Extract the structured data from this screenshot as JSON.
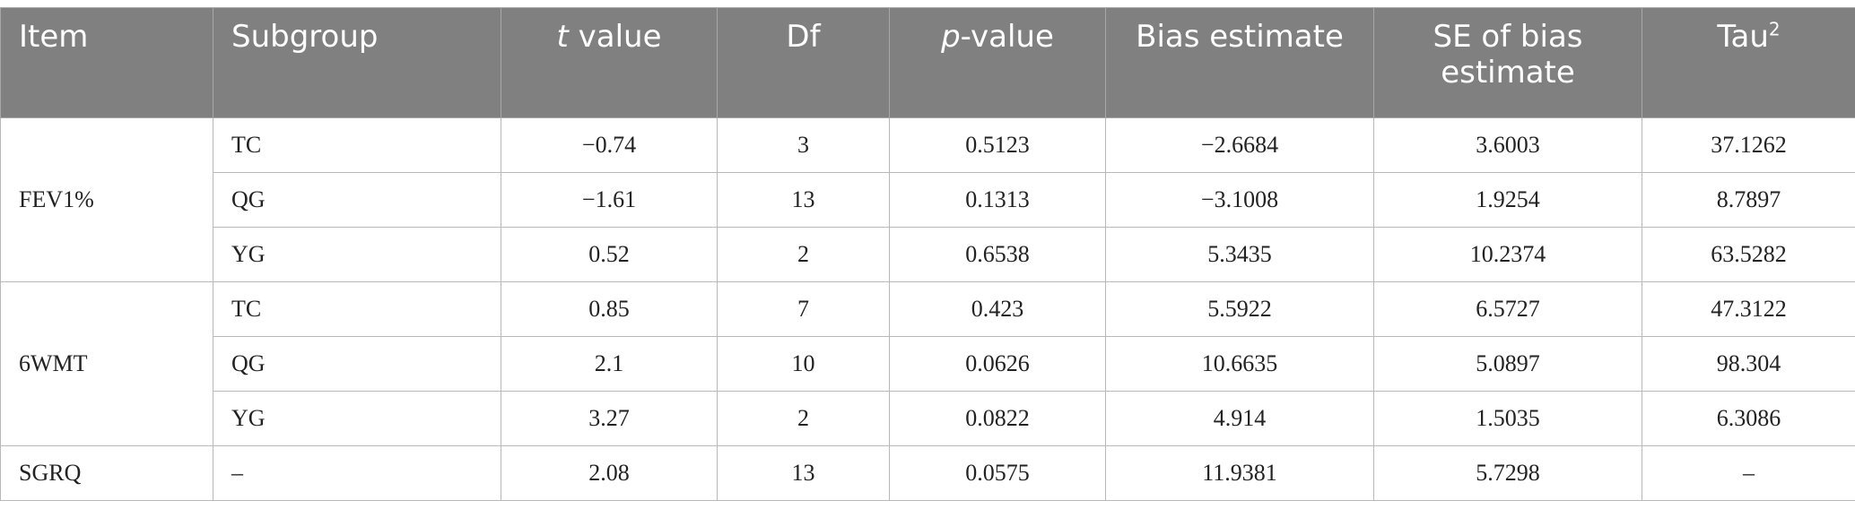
{
  "headers": {
    "item": "Item",
    "subgroup": "Subgroup",
    "t_value_italic": "t",
    "t_value_rest": " value",
    "df": "Df",
    "p_value_italic": "p",
    "p_value_rest": "-value",
    "bias_estimate": "Bias estimate",
    "se_bias_estimate": "SE of bias estimate",
    "tau_base": "Tau",
    "tau_sup": "2"
  },
  "groups": [
    {
      "item": "FEV1%",
      "rows": [
        {
          "subgroup": "TC",
          "t": "−0.74",
          "df": "3",
          "p": "0.5123",
          "bias": "−2.6684",
          "se": "3.6003",
          "tau2": "37.1262"
        },
        {
          "subgroup": "QG",
          "t": "−1.61",
          "df": "13",
          "p": "0.1313",
          "bias": "−3.1008",
          "se": "1.9254",
          "tau2": "8.7897"
        },
        {
          "subgroup": "YG",
          "t": "0.52",
          "df": "2",
          "p": "0.6538",
          "bias": "5.3435",
          "se": "10.2374",
          "tau2": "63.5282"
        }
      ]
    },
    {
      "item": "6WMT",
      "rows": [
        {
          "subgroup": "TC",
          "t": "0.85",
          "df": "7",
          "p": "0.423",
          "bias": "5.5922",
          "se": "6.5727",
          "tau2": "47.3122"
        },
        {
          "subgroup": "QG",
          "t": "2.1",
          "df": "10",
          "p": "0.0626",
          "bias": "10.6635",
          "se": "5.0897",
          "tau2": "98.304"
        },
        {
          "subgroup": "YG",
          "t": "3.27",
          "df": "2",
          "p": "0.0822",
          "bias": "4.914",
          "se": "1.5035",
          "tau2": "6.3086"
        }
      ]
    },
    {
      "item": "SGRQ",
      "rows": [
        {
          "subgroup": "–",
          "t": "2.08",
          "df": "13",
          "p": "0.0575",
          "bias": "11.9381",
          "se": "5.7298",
          "tau2": "–"
        }
      ]
    }
  ]
}
